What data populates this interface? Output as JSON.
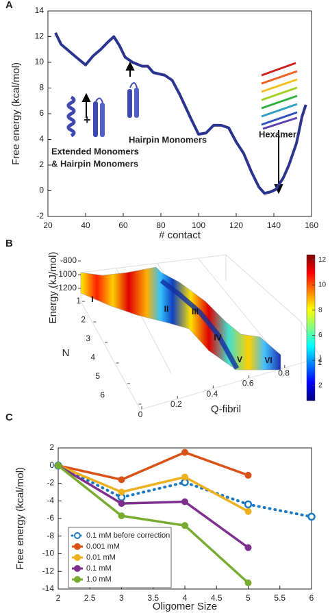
{
  "chart_data": [
    {
      "panel_label": "A",
      "type": "line",
      "x_label": "# contact",
      "y_label": "Free energy (kcal/mol)",
      "xlim": [
        20,
        160
      ],
      "ylim": [
        -2,
        14
      ],
      "xticks": [
        20,
        40,
        60,
        80,
        100,
        120,
        140,
        160
      ],
      "yticks": [
        -2,
        0,
        2,
        4,
        6,
        8,
        10,
        12,
        14
      ],
      "series": [
        {
          "color": "#2b3590",
          "x": [
            24,
            27,
            31,
            35,
            40,
            44,
            48,
            52,
            55,
            58,
            61,
            65,
            70,
            73,
            76,
            82,
            86,
            90,
            96,
            100,
            104,
            108,
            112,
            116,
            120,
            124,
            128,
            132,
            135,
            138,
            141,
            145,
            148,
            152,
            155,
            157
          ],
          "values": [
            12.3,
            11.4,
            10.9,
            10.4,
            9.8,
            10.5,
            11,
            11.6,
            12,
            11.3,
            10.4,
            10,
            9.7,
            9.7,
            9.2,
            9,
            8.6,
            7.5,
            5.6,
            4.4,
            4.5,
            5.1,
            5.1,
            4.9,
            3.8,
            2.9,
            1.5,
            0.3,
            -0.2,
            -0.1,
            0.1,
            1,
            2,
            3.7,
            5.8,
            6.7
          ]
        }
      ],
      "annotations": [
        "+",
        "Hairpin Monomers",
        "Extended Monomers",
        "& Hairpin Monomers",
        "Hexamer"
      ]
    },
    {
      "panel_label": "B",
      "type": "surface",
      "x_label": "Q-fibril",
      "y_label": "N",
      "z_label": "Energy (kJ/mol)",
      "xticks": [
        0,
        0.2,
        0.4,
        0.6,
        0.8,
        1
      ],
      "yticks": [
        1,
        2,
        3,
        4,
        5,
        6
      ],
      "zlim": [
        -1200,
        -800
      ],
      "zticks": [
        -1200,
        -1000,
        -800
      ],
      "colormap": "jet",
      "clim": [
        0.8,
        12.4
      ],
      "colorbar_ticks": [
        2,
        4,
        6,
        8,
        10,
        12
      ],
      "annotations": [
        "I",
        "II",
        "III",
        "IV",
        "V",
        "VI"
      ]
    },
    {
      "panel_label": "C",
      "type": "line",
      "x_label": "Oligomer Size",
      "y_label": "Free energy (kcal/mol)",
      "xlim": [
        2,
        6
      ],
      "ylim": [
        -14,
        2
      ],
      "xticks": [
        2,
        2.5,
        3,
        3.5,
        4,
        4.5,
        5,
        5.5,
        6
      ],
      "yticks": [
        -14,
        -12,
        -10,
        -8,
        -6,
        -4,
        -2,
        0,
        2
      ],
      "x": [
        2,
        3,
        4,
        5,
        6
      ],
      "legend": "lower left",
      "series": [
        {
          "name": "0.1 mM before correction",
          "color": "#1a78c2",
          "dotted": true,
          "marker": "open",
          "values": [
            0,
            -3.6,
            -1.9,
            -4.4,
            -5.8
          ]
        },
        {
          "name": "0.001 mM",
          "color": "#d95319",
          "marker": "filled",
          "values": [
            0,
            -1.6,
            1.5,
            -1.1,
            null
          ]
        },
        {
          "name": "0.01 mM",
          "color": "#edb120",
          "marker": "filled",
          "values": [
            0,
            -3,
            -1.3,
            -5.2,
            null
          ]
        },
        {
          "name": "0.1 mM",
          "color": "#7e2f8e",
          "marker": "filled",
          "values": [
            0,
            -4.3,
            -4.1,
            -9.3,
            null
          ]
        },
        {
          "name": "1.0 mM",
          "color": "#77ac30",
          "marker": "filled",
          "values": [
            0,
            -5.7,
            -6.8,
            -13.3,
            null
          ]
        }
      ]
    }
  ]
}
